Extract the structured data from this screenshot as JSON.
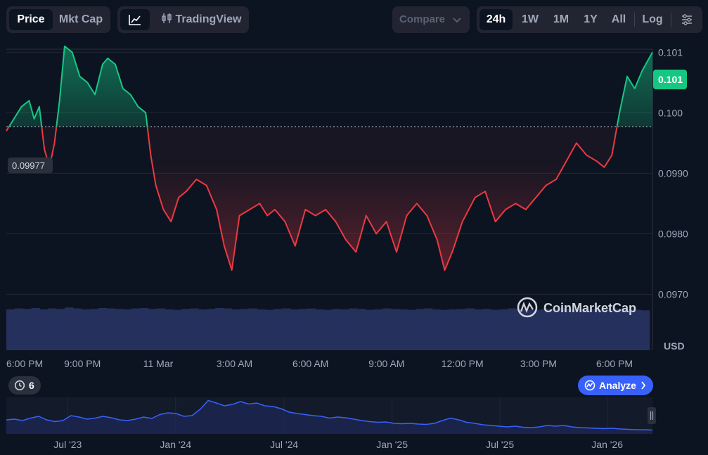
{
  "toolbar": {
    "price": "Price",
    "mktcap": "Mkt Cap",
    "tradingview": "TradingView",
    "compare": "Compare",
    "ranges": [
      "24h",
      "1W",
      "1M",
      "1Y",
      "All"
    ],
    "log": "Log",
    "active_range": "24h",
    "active_view": "Price"
  },
  "badges": {
    "current_price": "0.101",
    "open_price": "0.09977",
    "history_count": "6",
    "analyze": "Analyze",
    "watermark": "CoinMarketCap"
  },
  "colors": {
    "up": "#16c784",
    "down": "#ea3943",
    "accent": "#3861fb",
    "background": "#0d1421"
  },
  "icons": [
    "line-chart-icon",
    "candlestick-icon",
    "chevron-down-icon",
    "settings-sliders-icon",
    "history-icon",
    "analyze-icon",
    "chevron-right-icon",
    "coinmarketcap-logo-icon",
    "drag-handle-icon"
  ],
  "chart_data": {
    "type": "line",
    "baseline": 0.09977,
    "ylabel": "USD",
    "yticks": [
      0.097,
      0.098,
      0.099,
      0.1,
      0.101
    ],
    "ytick_labels": [
      "0.0970",
      "0.0980",
      "0.0990",
      "0.100",
      "0.101"
    ],
    "ylim": [
      0.09675,
      0.10105
    ],
    "xlim": [
      0,
      25.5
    ],
    "xticks": [
      0,
      3,
      6,
      9,
      12,
      15,
      18,
      21,
      24
    ],
    "xtick_labels": [
      "6:00 PM",
      "9:00 PM",
      "11 Mar",
      "3:00 AM",
      "6:00 AM",
      "9:00 AM",
      "12:00 PM",
      "3:00 PM",
      "6:00 PM"
    ],
    "x": [
      0,
      0.3,
      0.6,
      0.9,
      1.1,
      1.3,
      1.5,
      1.7,
      1.9,
      2.1,
      2.3,
      2.6,
      2.9,
      3.2,
      3.5,
      3.8,
      4.0,
      4.3,
      4.6,
      4.9,
      5.2,
      5.5,
      5.7,
      5.9,
      6.2,
      6.5,
      6.8,
      7.1,
      7.5,
      7.9,
      8.3,
      8.6,
      8.9,
      9.2,
      9.6,
      10.0,
      10.3,
      10.6,
      11.0,
      11.4,
      11.8,
      12.2,
      12.6,
      13.0,
      13.4,
      13.8,
      14.2,
      14.6,
      15.0,
      15.4,
      15.8,
      16.2,
      16.6,
      17.0,
      17.3,
      17.6,
      18.0,
      18.5,
      18.9,
      19.3,
      19.7,
      20.1,
      20.5,
      20.9,
      21.3,
      21.7,
      22.1,
      22.5,
      22.9,
      23.3,
      23.6,
      23.9,
      24.2,
      24.5,
      24.8,
      25.1,
      25.5
    ],
    "y": [
      0.0997,
      0.0999,
      0.1001,
      0.1002,
      0.0999,
      0.1001,
      0.0994,
      0.0991,
      0.0995,
      0.1002,
      0.1011,
      0.101,
      0.1006,
      0.1005,
      0.1003,
      0.1008,
      0.1009,
      0.1008,
      0.1004,
      0.1003,
      0.1001,
      0.1,
      0.0993,
      0.0988,
      0.0984,
      0.0982,
      0.0986,
      0.0987,
      0.0989,
      0.0988,
      0.0984,
      0.0978,
      0.0974,
      0.0983,
      0.0984,
      0.0985,
      0.0983,
      0.0984,
      0.0982,
      0.0978,
      0.0984,
      0.0983,
      0.0984,
      0.0982,
      0.0979,
      0.0977,
      0.0983,
      0.098,
      0.0982,
      0.0977,
      0.0983,
      0.0985,
      0.0983,
      0.0979,
      0.0974,
      0.0977,
      0.0982,
      0.0986,
      0.0987,
      0.0982,
      0.0984,
      0.0985,
      0.0984,
      0.0986,
      0.0988,
      0.0989,
      0.0992,
      0.0995,
      0.0993,
      0.0992,
      0.0991,
      0.0993,
      0.1,
      0.1006,
      0.1004,
      0.1007,
      0.101
    ],
    "volume": [
      0.88,
      0.9,
      0.89,
      0.91,
      0.88,
      0.9,
      0.89,
      0.92,
      0.9,
      0.88,
      0.89,
      0.91,
      0.9,
      0.89,
      0.88,
      0.9,
      0.91,
      0.89,
      0.9,
      0.88,
      0.87,
      0.89,
      0.9,
      0.88,
      0.89,
      0.91,
      0.9,
      0.88,
      0.89,
      0.9,
      0.88,
      0.87,
      0.89,
      0.9,
      0.88,
      0.89,
      0.9,
      0.88,
      0.87,
      0.89,
      0.88,
      0.9,
      0.89,
      0.87,
      0.88,
      0.9,
      0.89,
      0.88,
      0.87,
      0.89,
      0.9,
      0.88,
      0.87,
      0.88,
      0.89,
      0.9,
      0.88,
      0.89,
      0.87,
      0.88,
      0.9,
      0.89,
      0.88,
      0.87,
      0.89,
      0.88,
      0.9,
      0.89,
      0.88,
      0.87,
      0.89,
      0.88,
      0.9,
      0.89,
      0.88,
      0.87,
      0.86
    ]
  },
  "navigator": {
    "labels": [
      "Jul '23",
      "Jan '24",
      "Jul '24",
      "Jan '25",
      "Jul '25",
      "Jan '26"
    ],
    "label_positions": [
      0.095,
      0.262,
      0.43,
      0.597,
      0.764,
      0.93
    ],
    "values": [
      0.4,
      0.42,
      0.38,
      0.45,
      0.5,
      0.4,
      0.35,
      0.38,
      0.52,
      0.48,
      0.42,
      0.45,
      0.5,
      0.46,
      0.4,
      0.38,
      0.42,
      0.48,
      0.44,
      0.55,
      0.6,
      0.58,
      0.5,
      0.52,
      0.7,
      0.95,
      0.88,
      0.8,
      0.84,
      0.92,
      0.85,
      0.88,
      0.8,
      0.78,
      0.72,
      0.62,
      0.58,
      0.55,
      0.52,
      0.5,
      0.45,
      0.48,
      0.46,
      0.42,
      0.38,
      0.35,
      0.33,
      0.34,
      0.3,
      0.29,
      0.3,
      0.28,
      0.27,
      0.3,
      0.38,
      0.45,
      0.4,
      0.33,
      0.3,
      0.26,
      0.24,
      0.22,
      0.2,
      0.22,
      0.19,
      0.18,
      0.2,
      0.24,
      0.22,
      0.24,
      0.2,
      0.18,
      0.17,
      0.16,
      0.15,
      0.16,
      0.14,
      0.13,
      0.12,
      0.12,
      0.11
    ]
  }
}
